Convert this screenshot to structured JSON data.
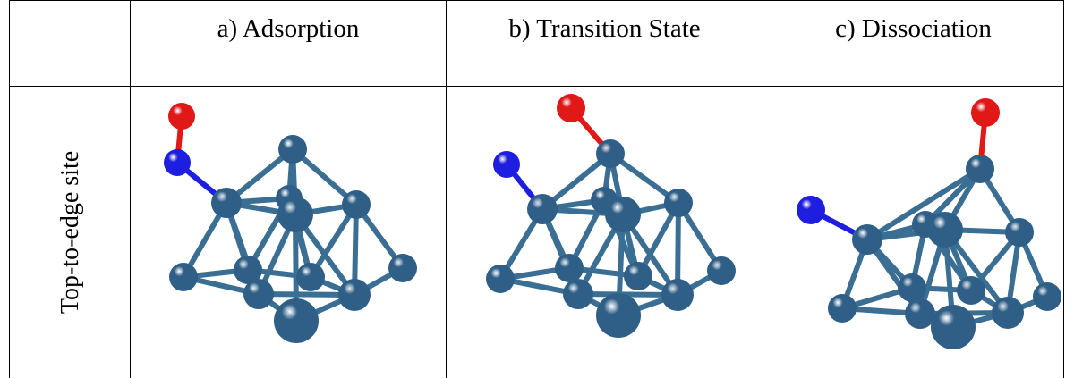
{
  "table": {
    "columns": [
      "a) Adsorption",
      "b) Transition State",
      "c) Dissociation"
    ],
    "row_label": "Top-to-edge site"
  },
  "colors": {
    "metal_atom": "#2f5f86",
    "bond": "#3a6e93",
    "nitrogen_atom": "#1e1ee0",
    "oxygen_atom": "#e01818"
  },
  "panels": [
    {
      "name": "adsorption",
      "adsorbate": [
        "N",
        "O"
      ]
    },
    {
      "name": "transition-state",
      "adsorbate": [
        "N",
        "O"
      ]
    },
    {
      "name": "dissociation",
      "adsorbate": [
        "N",
        "O"
      ]
    }
  ]
}
